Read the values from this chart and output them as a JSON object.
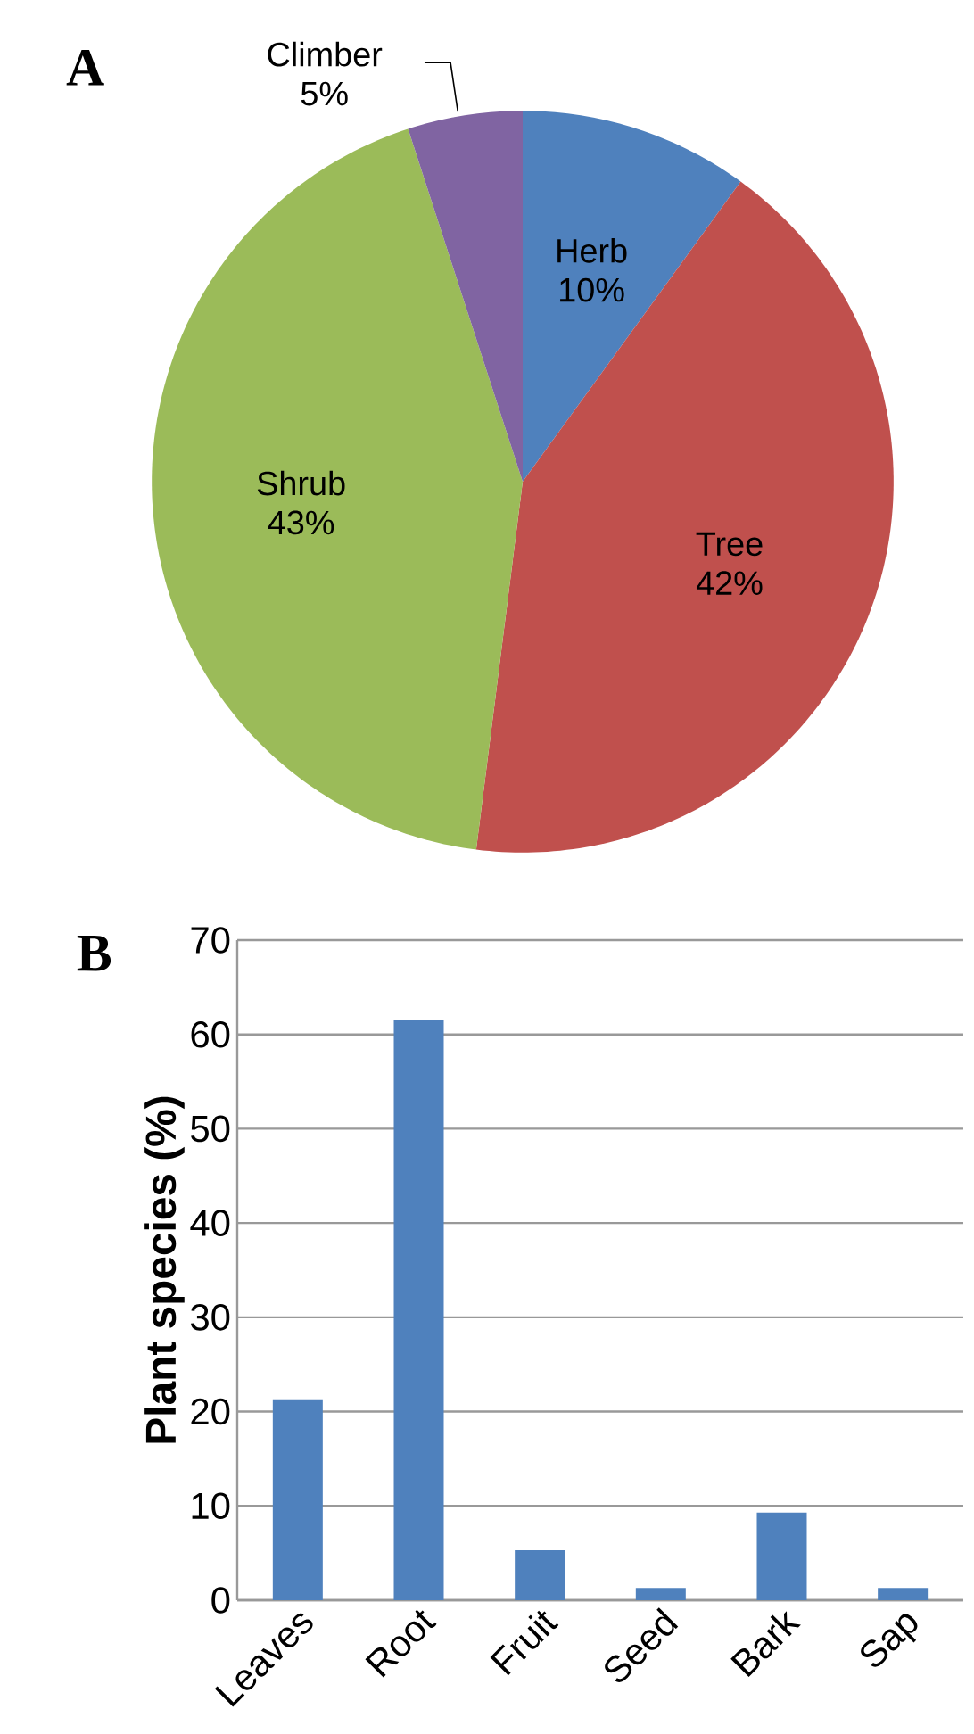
{
  "chart_data": [
    {
      "type": "pie",
      "title": "A",
      "categories": [
        "Herb",
        "Tree",
        "Shrub",
        "Climber"
      ],
      "values": [
        10,
        42,
        43,
        5
      ],
      "colors": [
        "#4f81bd",
        "#c0504d",
        "#9bbb59",
        "#8064a2"
      ],
      "value_labels": [
        "10%",
        "42%",
        "43%",
        "5%"
      ]
    },
    {
      "type": "bar",
      "title": "B",
      "ylabel": "Plant species (%)",
      "categories": [
        "Leaves",
        "Root",
        "Fruit",
        "Seed",
        "Bark",
        "Sap"
      ],
      "values": [
        21.3,
        61.5,
        5.3,
        1.3,
        9.3,
        1.3
      ],
      "color": "#4f81bd",
      "ylim": [
        0,
        70
      ],
      "yticks": [
        0,
        10,
        20,
        30,
        40,
        50,
        60,
        70
      ],
      "grid": "y"
    }
  ]
}
